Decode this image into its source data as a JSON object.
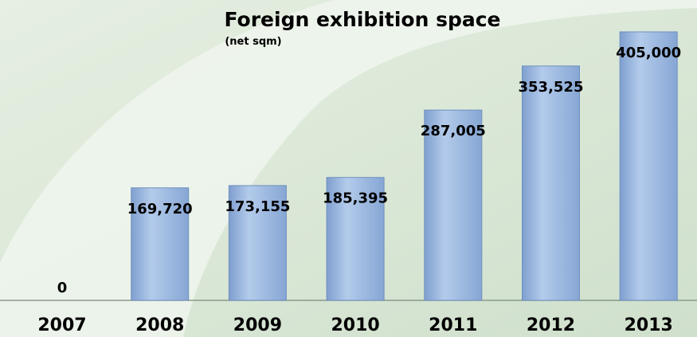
{
  "chart_data": {
    "type": "bar",
    "title": "Foreign exhibition space",
    "subtitle": "(net sqm)",
    "categories": [
      "2007",
      "2008",
      "2009",
      "2010",
      "2011",
      "2012",
      "2013"
    ],
    "values": [
      0,
      169720,
      173155,
      185395,
      287005,
      353525,
      405000
    ],
    "value_labels": [
      "0",
      "169,720",
      "173,155",
      "185,395",
      "287,005",
      "353,525",
      "405,000"
    ],
    "color": "#9bb8e0"
  }
}
